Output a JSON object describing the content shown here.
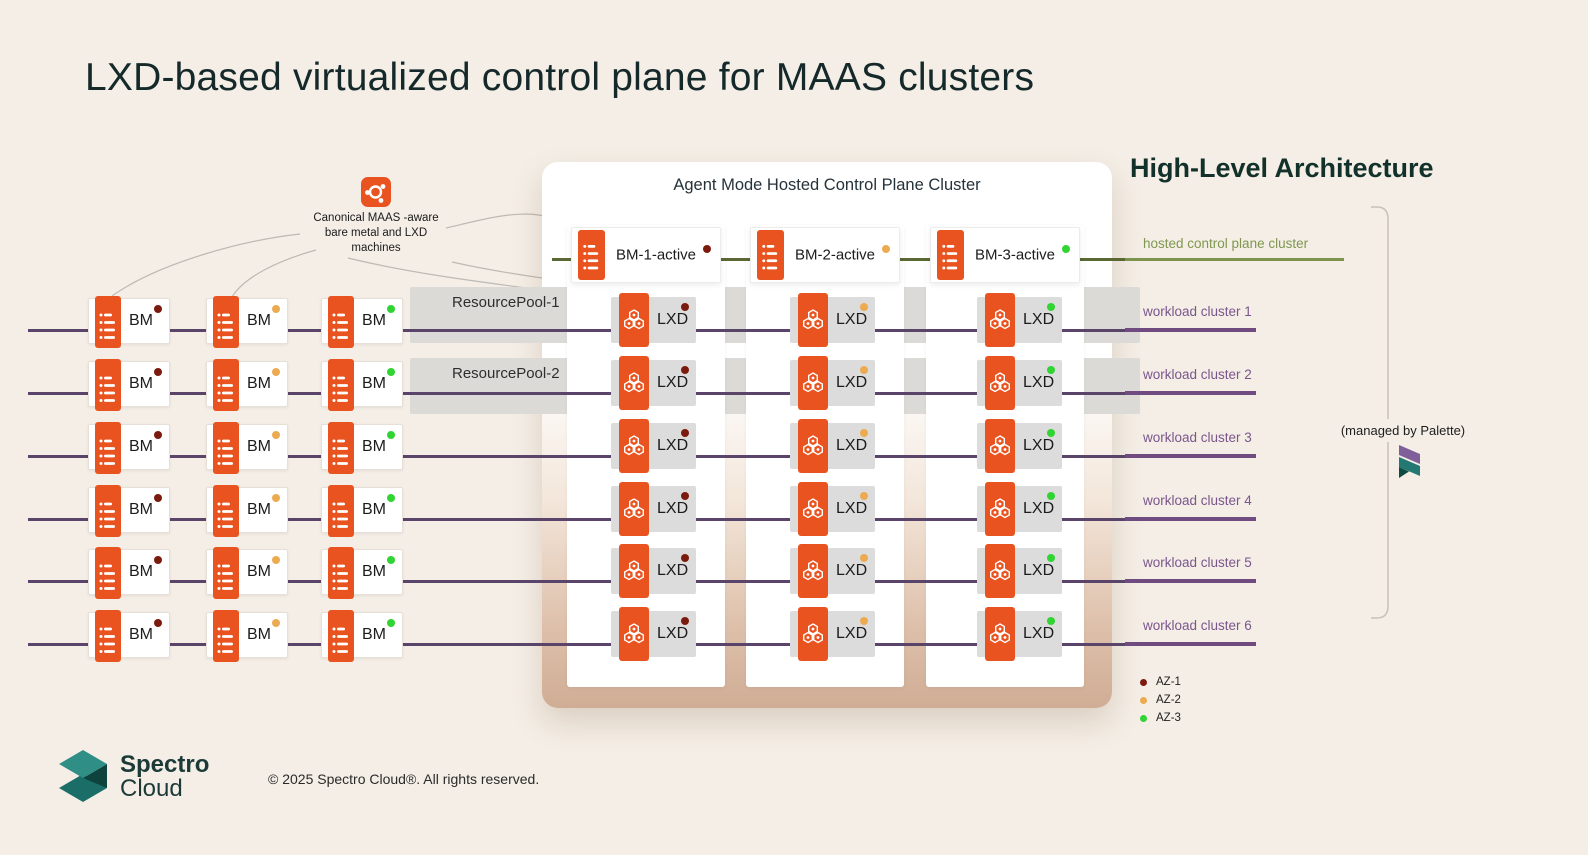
{
  "title": "LXD-based virtualized control plane for MAAS clusters",
  "architecture_heading": "High-Level Architecture",
  "annotation": {
    "icon": "ubuntu-icon",
    "line1": "Canonical MAAS -aware",
    "line2": "bare metal and LXD",
    "line3": "machines"
  },
  "control_plane_panel": {
    "title": "Agent Mode Hosted Control Plane Cluster",
    "bm_hosts": [
      {
        "label": "BM-1-active",
        "az": "AZ-1"
      },
      {
        "label": "BM-2-active",
        "az": "AZ-2"
      },
      {
        "label": "BM-3-active",
        "az": "AZ-3"
      }
    ],
    "lxd_label": "LXD",
    "lxd_rows_per_host": 6
  },
  "resource_pools": [
    "ResourcePool-1",
    "ResourcePool-2"
  ],
  "bare_metal_grid": {
    "label": "BM",
    "rows": 6,
    "columns": 3,
    "column_az": [
      "AZ-1",
      "AZ-2",
      "AZ-3"
    ]
  },
  "cluster_labels": {
    "hosted": "hosted control plane cluster",
    "workload": [
      "workload cluster 1",
      "workload cluster 2",
      "workload cluster 3",
      "workload cluster 4",
      "workload cluster 5",
      "workload cluster 6"
    ]
  },
  "managed_by": "(managed by Palette)",
  "legend": [
    {
      "label": "AZ-1",
      "color": "#7b1b0d"
    },
    {
      "label": "AZ-2",
      "color": "#ecab51"
    },
    {
      "label": "AZ-3",
      "color": "#30d433"
    }
  ],
  "footer": {
    "brand_top": "Spectro",
    "brand_bottom": "Cloud",
    "copyright": "© 2025 Spectro Cloud®. All rights reserved."
  },
  "colors": {
    "background": "#f4eee6",
    "orange_accent": "#e9531f",
    "purple_line": "#5b4469",
    "purple_label": "#7a568c",
    "olive_line": "#5a6834",
    "olive_label": "#7e944d",
    "box_gray": "#dcdcdc",
    "panel_fade": "#d0ad95",
    "brand_teal": "#1c3a38",
    "az1": "#7b1b0d",
    "az2": "#ecab51",
    "az3": "#30d433"
  }
}
